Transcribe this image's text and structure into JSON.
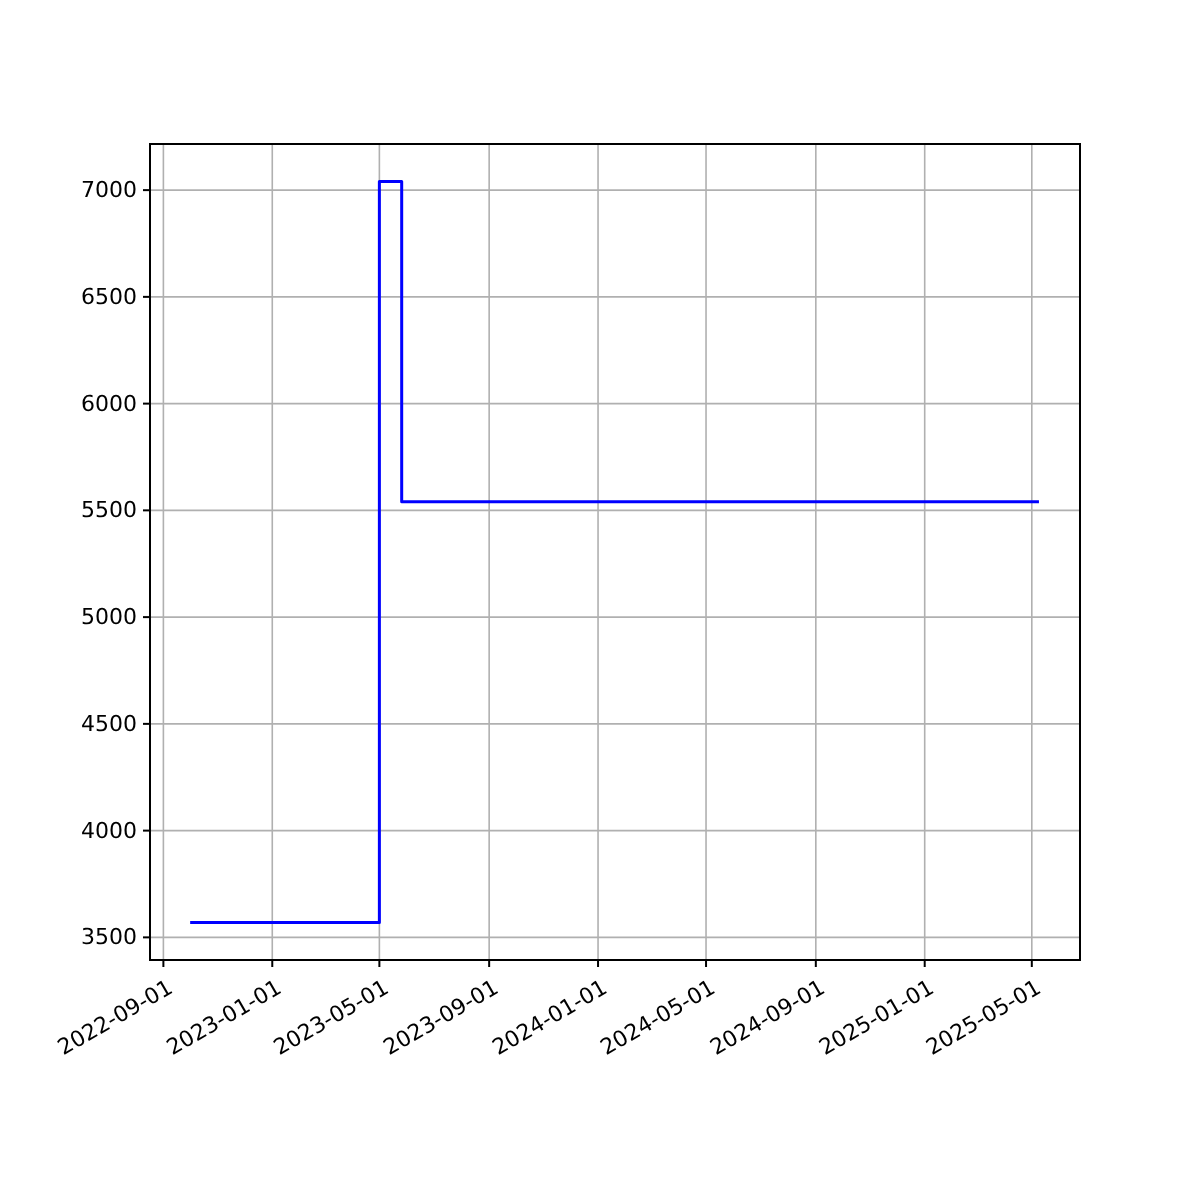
{
  "chart_data": {
    "type": "step",
    "x": [
      "2022-10-01",
      "2023-05-01",
      "2023-05-26",
      "2025-05-09"
    ],
    "series": [
      {
        "color": "#0000ff",
        "values": [
          3570,
          7040,
          5540,
          5540
        ]
      }
    ],
    "xlim": [
      "2022-08-17",
      "2025-06-24"
    ],
    "xticks": [
      "2022-09-01",
      "2023-01-01",
      "2023-05-01",
      "2023-09-01",
      "2024-01-01",
      "2024-05-01",
      "2024-09-01",
      "2025-01-01",
      "2025-05-01"
    ],
    "ylim": [
      3394,
      7216
    ],
    "yticks": [
      3500,
      4000,
      4500,
      5000,
      5500,
      6000,
      6500,
      7000
    ],
    "grid": true
  }
}
